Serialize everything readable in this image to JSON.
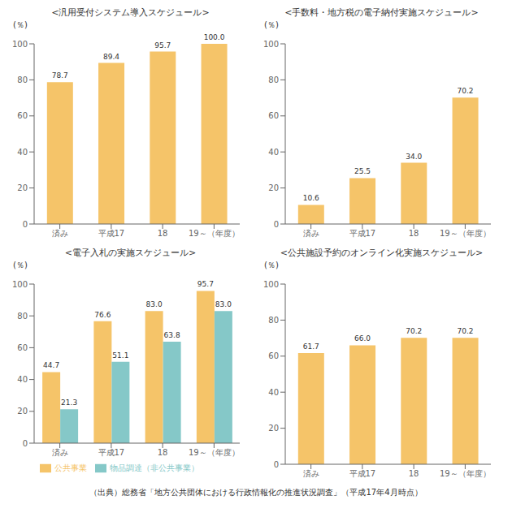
{
  "chart_data": [
    {
      "type": "bar",
      "title": "<汎用受付システム導入スケジュール>",
      "ylabel": "(％)",
      "categories": [
        "済み",
        "平成17",
        "18",
        "19～（年度）"
      ],
      "values": [
        78.7,
        89.4,
        95.7,
        100.0
      ],
      "value_labels": [
        "78.7",
        "89.4",
        "95.7",
        "100.0"
      ],
      "color": "#F5C469",
      "ylim": [
        0,
        100
      ],
      "yticks": [
        0,
        20,
        40,
        60,
        80,
        100
      ],
      "grid": false,
      "data_labels": true
    },
    {
      "type": "bar",
      "title": "<手数料・地方税の電子納付実施スケジュール>",
      "ylabel": "(％)",
      "categories": [
        "済み",
        "平成17",
        "18",
        "19～（年度）"
      ],
      "values": [
        10.6,
        25.5,
        34.0,
        70.2
      ],
      "value_labels": [
        "10.6",
        "25.5",
        "34.0",
        "70.2"
      ],
      "color": "#F5C469",
      "ylim": [
        0,
        100
      ],
      "yticks": [
        0,
        20,
        40,
        60,
        80,
        100
      ],
      "grid": false,
      "data_labels": true
    },
    {
      "type": "bar",
      "title": "<電子入札の実施スケジュール>",
      "ylabel": "(％)",
      "categories": [
        "済み",
        "平成17",
        "18",
        "19～（年度）"
      ],
      "series": [
        {
          "name": "公共事業",
          "color": "#F5C469",
          "values": [
            44.7,
            76.6,
            83.0,
            95.7
          ],
          "value_labels": [
            "44.7",
            "76.6",
            "83.0",
            "95.7"
          ]
        },
        {
          "name": "物品調達（非公共事業）",
          "color": "#85C8C8",
          "values": [
            21.3,
            51.1,
            63.8,
            83.0
          ],
          "value_labels": [
            "21.3",
            "51.1",
            "63.8",
            "83.0"
          ]
        }
      ],
      "ylim": [
        0,
        100
      ],
      "yticks": [
        0,
        20,
        40,
        60,
        80,
        100
      ],
      "grid": false,
      "legend": "bottom",
      "data_labels": true
    },
    {
      "type": "bar",
      "title": "<公共施設予約のオンライン化実施スケジュール>",
      "ylabel": "(％)",
      "categories": [
        "済み",
        "平成17",
        "18",
        "19～（年度）"
      ],
      "values": [
        61.7,
        66.0,
        70.2,
        70.2
      ],
      "value_labels": [
        "61.7",
        "66.0",
        "70.2",
        "70.2"
      ],
      "color": "#F5C469",
      "ylim": [
        0,
        100
      ],
      "yticks": [
        0,
        20,
        40,
        60,
        80,
        100
      ],
      "grid": false,
      "data_labels": true
    }
  ],
  "footer": "（出典）総務省「地方公共団体における行政情報化の推進状況調査」（平成17年4月時点）"
}
